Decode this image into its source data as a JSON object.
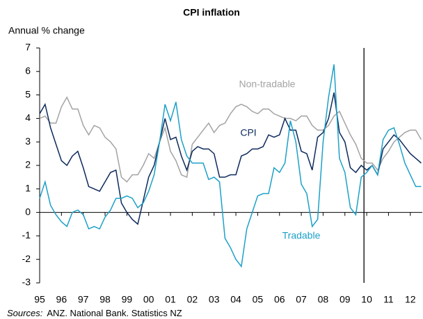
{
  "chart_data": {
    "type": "line",
    "title": "CPI inflation",
    "y_label": "Annual % change",
    "source_prefix": "Sources:",
    "source": "ANZ. National Bank. Statistics NZ",
    "x": [
      1995,
      1995.25,
      1995.5,
      1995.75,
      1996,
      1996.25,
      1996.5,
      1996.75,
      1997,
      1997.25,
      1997.5,
      1997.75,
      1998,
      1998.25,
      1998.5,
      1998.75,
      1999,
      1999.25,
      1999.5,
      1999.75,
      2000,
      2000.25,
      2000.5,
      2000.75,
      2001,
      2001.25,
      2001.5,
      2001.75,
      2002,
      2002.25,
      2002.5,
      2002.75,
      2003,
      2003.25,
      2003.5,
      2003.75,
      2004,
      2004.25,
      2004.5,
      2004.75,
      2005,
      2005.25,
      2005.5,
      2005.75,
      2006,
      2006.25,
      2006.5,
      2006.75,
      2007,
      2007.25,
      2007.5,
      2007.75,
      2008,
      2008.25,
      2008.5,
      2008.75,
      2009,
      2009.25,
      2009.5,
      2009.75,
      2010,
      2010.25,
      2010.5,
      2010.75,
      2011,
      2011.25,
      2011.5,
      2011.75,
      2012,
      2012.25,
      2012.5
    ],
    "series": [
      {
        "name": "Non-tradable",
        "color": "#a3a3a3",
        "values": [
          4.0,
          4.1,
          3.8,
          3.8,
          4.5,
          4.9,
          4.4,
          4.4,
          3.7,
          3.3,
          3.7,
          3.6,
          3.2,
          3.0,
          2.7,
          1.5,
          1.3,
          1.6,
          1.6,
          2.0,
          2.5,
          2.3,
          3.0,
          3.6,
          2.6,
          2.2,
          1.6,
          1.5,
          2.9,
          3.2,
          3.5,
          3.8,
          3.4,
          3.7,
          3.8,
          4.2,
          4.5,
          4.6,
          4.5,
          4.3,
          4.2,
          4.4,
          4.4,
          4.2,
          4.1,
          4.0,
          4.0,
          3.9,
          4.1,
          4.1,
          3.7,
          3.5,
          3.5,
          3.7,
          4.1,
          4.3,
          3.8,
          3.3,
          2.9,
          2.3,
          2.1,
          2.1,
          1.8,
          2.3,
          2.6,
          3.0,
          3.2,
          3.4,
          3.5,
          3.5,
          3.1
        ]
      },
      {
        "name": "CPI",
        "color": "#0d2a5c",
        "values": [
          4.2,
          4.6,
          3.6,
          2.9,
          2.2,
          2.0,
          2.4,
          2.6,
          1.9,
          1.1,
          1.0,
          0.9,
          1.3,
          1.7,
          1.8,
          0.4,
          0.0,
          -0.3,
          -0.5,
          0.5,
          1.5,
          2.0,
          3.0,
          4.0,
          3.1,
          3.2,
          2.4,
          1.8,
          2.6,
          2.8,
          2.7,
          2.7,
          2.5,
          1.5,
          1.5,
          1.6,
          1.6,
          2.4,
          2.5,
          2.7,
          2.7,
          2.8,
          3.3,
          3.2,
          3.3,
          4.0,
          3.5,
          3.5,
          2.6,
          2.5,
          1.8,
          3.2,
          3.4,
          4.0,
          5.1,
          3.4,
          3.0,
          1.9,
          1.7,
          2.0,
          1.8,
          2.0,
          1.6,
          2.7,
          3.0,
          3.3,
          3.1,
          2.8,
          2.5,
          2.3,
          2.1
        ]
      },
      {
        "name": "Tradable",
        "color": "#1ca0c8",
        "values": [
          0.6,
          1.3,
          0.3,
          -0.1,
          -0.4,
          -0.6,
          0.0,
          0.1,
          -0.1,
          -0.7,
          -0.6,
          -0.7,
          -0.2,
          0.1,
          0.6,
          0.6,
          0.7,
          0.6,
          0.2,
          0.4,
          0.9,
          1.6,
          3.0,
          4.6,
          3.9,
          4.7,
          3.1,
          2.4,
          2.1,
          2.1,
          2.1,
          1.4,
          1.5,
          1.3,
          -1.1,
          -1.5,
          -2.0,
          -2.3,
          -0.7,
          0.0,
          0.7,
          0.8,
          0.8,
          1.9,
          1.7,
          2.1,
          3.9,
          3.0,
          1.2,
          0.8,
          -0.6,
          -0.3,
          3.0,
          4.9,
          6.3,
          2.3,
          1.7,
          0.2,
          -0.1,
          1.5,
          1.7,
          2.0,
          1.6,
          3.1,
          3.5,
          3.6,
          2.9,
          2.1,
          1.6,
          1.1,
          1.1
        ]
      }
    ],
    "xlim": [
      1995,
      2012.55
    ],
    "xticks": [
      {
        "value": 1995,
        "label": "95"
      },
      {
        "value": 1996,
        "label": "96"
      },
      {
        "value": 1997,
        "label": "97"
      },
      {
        "value": 1998,
        "label": "98"
      },
      {
        "value": 1999,
        "label": "99"
      },
      {
        "value": 2000,
        "label": "00"
      },
      {
        "value": 2001,
        "label": "01"
      },
      {
        "value": 2002,
        "label": "02"
      },
      {
        "value": 2003,
        "label": "03"
      },
      {
        "value": 2004,
        "label": "04"
      },
      {
        "value": 2005,
        "label": "05"
      },
      {
        "value": 2006,
        "label": "06"
      },
      {
        "value": 2007,
        "label": "07"
      },
      {
        "value": 2008,
        "label": "08"
      },
      {
        "value": 2009,
        "label": "09"
      },
      {
        "value": 2010,
        "label": "10"
      },
      {
        "value": 2011,
        "label": "11"
      },
      {
        "value": 2012,
        "label": "12"
      }
    ],
    "ylim": [
      -3,
      7
    ],
    "yticks": [
      -3,
      -2,
      -1,
      0,
      1,
      2,
      3,
      4,
      5,
      6,
      7
    ],
    "vertical_line_x": 2009.875,
    "grid": false
  }
}
